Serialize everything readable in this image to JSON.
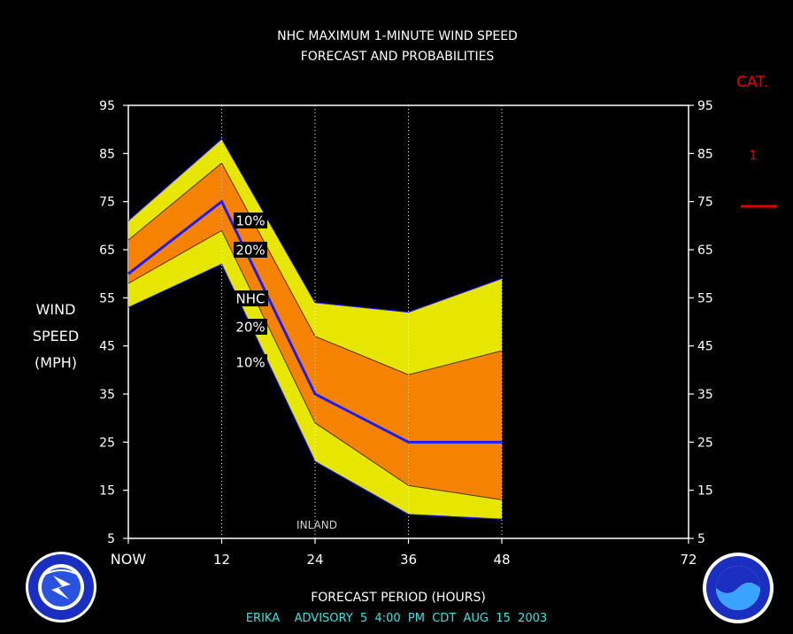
{
  "title_line1": "NHC MAXIMUM 1-MINUTE WIND SPEED",
  "title_line2": "FORECAST AND PROBABILITIES",
  "ylabel_lines": [
    "WIND",
    "SPEED",
    "(MPH)"
  ],
  "xlabel": "FORECAST PERIOD (HOURS)",
  "advisory": "ERIKA    ADVISORY  5  4:00  PM  CDT  AUG  15  2003",
  "cat_header": "CAT.",
  "cat_value": "1",
  "inland_label": "INLAND",
  "colors": {
    "band_outer": "#e6e600",
    "band_inner": "#f58200",
    "forecast_line": "#1c1cff",
    "cat_color": "#e00000",
    "frame": "#ffffff",
    "advisory_text": "#40e0e0"
  },
  "chart_data": {
    "type": "area",
    "x_ticks": [
      {
        "value": 0,
        "label": "NOW"
      },
      {
        "value": 12,
        "label": "12"
      },
      {
        "value": 24,
        "label": "24"
      },
      {
        "value": 36,
        "label": "36"
      },
      {
        "value": 48,
        "label": "48"
      },
      {
        "value": 72,
        "label": "72"
      }
    ],
    "y_ticks": [
      5,
      15,
      25,
      35,
      45,
      55,
      65,
      75,
      85,
      95
    ],
    "xlim": [
      0,
      72
    ],
    "ylim": [
      5,
      95
    ],
    "x": [
      0,
      12,
      24,
      36,
      48
    ],
    "series": [
      {
        "name": "10%",
        "upper": [
          71,
          88,
          54,
          52,
          59
        ],
        "lower": [
          53,
          62,
          21,
          10,
          9
        ]
      },
      {
        "name": "20%",
        "upper": [
          67,
          83,
          47,
          39,
          44
        ],
        "lower": [
          58,
          69,
          29,
          16,
          13
        ]
      },
      {
        "name": "NHC",
        "values": [
          60,
          75,
          35,
          25,
          25
        ]
      }
    ],
    "band_labels": [
      "10%",
      "20%",
      "NHC",
      "20%",
      "10%"
    ],
    "category_lines": [
      {
        "value": 74,
        "label": "1"
      }
    ],
    "inland_x": 24
  }
}
